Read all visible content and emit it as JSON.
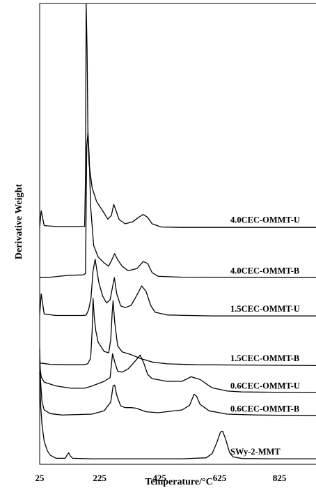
{
  "chart_data": {
    "type": "line",
    "title": "",
    "xlabel": "Temperature/°C",
    "ylabel": "Derivative Weight",
    "xlim": [
      25,
      1000
    ],
    "ylim": [
      0,
      100
    ],
    "x_ticks": [
      25,
      225,
      425,
      625,
      825
    ],
    "y_ticks_shown": false,
    "grid": false,
    "legend": "labels printed inline at right end of each curve",
    "series": [
      {
        "name": "4.0CEC-OMMT-U",
        "baseline": 51.5,
        "points": [
          [
            25,
            51.5
          ],
          [
            30,
            55
          ],
          [
            40,
            51.8
          ],
          [
            80,
            51.6
          ],
          [
            170,
            51.6
          ],
          [
            175,
            51.6
          ],
          [
            178,
            63
          ],
          [
            180,
            100
          ],
          [
            183,
            90
          ],
          [
            186,
            71
          ],
          [
            190,
            65
          ],
          [
            200,
            60
          ],
          [
            215,
            57
          ],
          [
            235,
            55
          ],
          [
            252,
            53.2
          ],
          [
            264,
            54
          ],
          [
            272,
            56.4
          ],
          [
            280,
            55
          ],
          [
            290,
            53.1
          ],
          [
            310,
            52.2
          ],
          [
            335,
            52.6
          ],
          [
            355,
            53.6
          ],
          [
            370,
            54.2
          ],
          [
            385,
            53.6
          ],
          [
            400,
            52.2
          ],
          [
            430,
            51.5
          ],
          [
            500,
            51.4
          ],
          [
            700,
            51.4
          ],
          [
            1000,
            51.4
          ]
        ]
      },
      {
        "name": "4.0CEC-OMMT-B",
        "baseline": 40.5,
        "points": [
          [
            25,
            40.5
          ],
          [
            60,
            40.6
          ],
          [
            120,
            41
          ],
          [
            170,
            41.1
          ],
          [
            178,
            41.4
          ],
          [
            182,
            69
          ],
          [
            186,
            72
          ],
          [
            190,
            67
          ],
          [
            195,
            56
          ],
          [
            205,
            47.5
          ],
          [
            220,
            45
          ],
          [
            240,
            43.7
          ],
          [
            255,
            43
          ],
          [
            265,
            44.3
          ],
          [
            275,
            45.7
          ],
          [
            285,
            44.4
          ],
          [
            300,
            43
          ],
          [
            320,
            42
          ],
          [
            350,
            42.5
          ],
          [
            370,
            44
          ],
          [
            385,
            43.6
          ],
          [
            400,
            41.6
          ],
          [
            420,
            40.8
          ],
          [
            500,
            40.6
          ],
          [
            1000,
            40.5
          ]
        ]
      },
      {
        "name": "1.5CEC-OMMT-U",
        "baseline": 32.2,
        "points": [
          [
            25,
            32.5
          ],
          [
            30,
            37
          ],
          [
            40,
            32.6
          ],
          [
            80,
            32.3
          ],
          [
            170,
            32.3
          ],
          [
            180,
            32.4
          ],
          [
            188,
            33.5
          ],
          [
            196,
            36
          ],
          [
            203,
            42
          ],
          [
            210,
            44.5
          ],
          [
            216,
            42
          ],
          [
            222,
            39.5
          ],
          [
            235,
            36.5
          ],
          [
            248,
            35
          ],
          [
            260,
            35.7
          ],
          [
            268,
            38.5
          ],
          [
            274,
            40.5
          ],
          [
            282,
            37
          ],
          [
            295,
            34.4
          ],
          [
            310,
            34
          ],
          [
            330,
            34.5
          ],
          [
            350,
            36.8
          ],
          [
            365,
            38.7
          ],
          [
            380,
            37.5
          ],
          [
            395,
            34.5
          ],
          [
            410,
            33
          ],
          [
            450,
            32.4
          ],
          [
            600,
            32.2
          ],
          [
            1000,
            32.2
          ]
        ]
      },
      {
        "name": "1.5CEC-OMMT-B",
        "baseline": 21.5,
        "points": [
          [
            25,
            22
          ],
          [
            35,
            21.9
          ],
          [
            60,
            21.7
          ],
          [
            120,
            21.6
          ],
          [
            170,
            21.6
          ],
          [
            185,
            21.8
          ],
          [
            195,
            23
          ],
          [
            200,
            29
          ],
          [
            203,
            36
          ],
          [
            207,
            32
          ],
          [
            212,
            29
          ],
          [
            220,
            26.5
          ],
          [
            240,
            24.5
          ],
          [
            255,
            24.2
          ],
          [
            262,
            27
          ],
          [
            267,
            33
          ],
          [
            270,
            35.5
          ],
          [
            275,
            31
          ],
          [
            285,
            25.7
          ],
          [
            300,
            24.4
          ],
          [
            330,
            23.8
          ],
          [
            360,
            23
          ],
          [
            400,
            22.2
          ],
          [
            450,
            21.8
          ],
          [
            550,
            21.6
          ],
          [
            1000,
            21.4
          ]
        ]
      },
      {
        "name": "0.6CEC-OMMT-U",
        "baseline": 15.5,
        "points": [
          [
            25,
            21.5
          ],
          [
            30,
            19
          ],
          [
            40,
            17.8
          ],
          [
            80,
            17
          ],
          [
            130,
            16.5
          ],
          [
            175,
            16.5
          ],
          [
            200,
            17
          ],
          [
            240,
            18
          ],
          [
            260,
            18.8
          ],
          [
            268,
            24
          ],
          [
            274,
            22.5
          ],
          [
            285,
            20.2
          ],
          [
            300,
            20
          ],
          [
            320,
            20.7
          ],
          [
            345,
            22.5
          ],
          [
            360,
            23.7
          ],
          [
            372,
            22
          ],
          [
            385,
            19.5
          ],
          [
            400,
            18.6
          ],
          [
            450,
            18
          ],
          [
            500,
            18
          ],
          [
            530,
            19
          ],
          [
            560,
            18.4
          ],
          [
            600,
            16.6
          ],
          [
            650,
            15.9
          ],
          [
            700,
            15.7
          ],
          [
            1000,
            15.5
          ]
        ]
      },
      {
        "name": "0.6CEC-OMMT-B",
        "baseline": 10.5,
        "points": [
          [
            25,
            25
          ],
          [
            28,
            18
          ],
          [
            33,
            13.5
          ],
          [
            40,
            11.8
          ],
          [
            60,
            11
          ],
          [
            100,
            10.7
          ],
          [
            200,
            10.9
          ],
          [
            240,
            11.6
          ],
          [
            262,
            13.5
          ],
          [
            270,
            17
          ],
          [
            275,
            17.2
          ],
          [
            282,
            15
          ],
          [
            295,
            12.7
          ],
          [
            310,
            12.3
          ],
          [
            330,
            12.3
          ],
          [
            345,
            12.2
          ],
          [
            380,
            11.4
          ],
          [
            420,
            11.2
          ],
          [
            460,
            11.5
          ],
          [
            500,
            11.8
          ],
          [
            525,
            12.8
          ],
          [
            540,
            15.2
          ],
          [
            548,
            14.8
          ],
          [
            560,
            13
          ],
          [
            590,
            11.6
          ],
          [
            650,
            10.9
          ],
          [
            750,
            10.7
          ],
          [
            1000,
            10.5
          ]
        ]
      },
      {
        "name": "SWy-2-MMT",
        "baseline": 1.2,
        "points": [
          [
            25,
            20
          ],
          [
            28,
            13
          ],
          [
            33,
            8.5
          ],
          [
            40,
            5
          ],
          [
            50,
            3
          ],
          [
            60,
            2
          ],
          [
            80,
            1.3
          ],
          [
            110,
            1.3
          ],
          [
            118,
            2.2
          ],
          [
            122,
            2.5
          ],
          [
            126,
            1.9
          ],
          [
            135,
            1.3
          ],
          [
            200,
            1.2
          ],
          [
            300,
            1.2
          ],
          [
            400,
            1.2
          ],
          [
            500,
            1.2
          ],
          [
            580,
            1.4
          ],
          [
            600,
            2.3
          ],
          [
            615,
            4.6
          ],
          [
            628,
            7
          ],
          [
            635,
            7.2
          ],
          [
            645,
            5.5
          ],
          [
            658,
            2.6
          ],
          [
            670,
            1.6
          ],
          [
            700,
            1.25
          ],
          [
            800,
            1.2
          ],
          [
            1000,
            1.2
          ]
        ]
      }
    ]
  }
}
